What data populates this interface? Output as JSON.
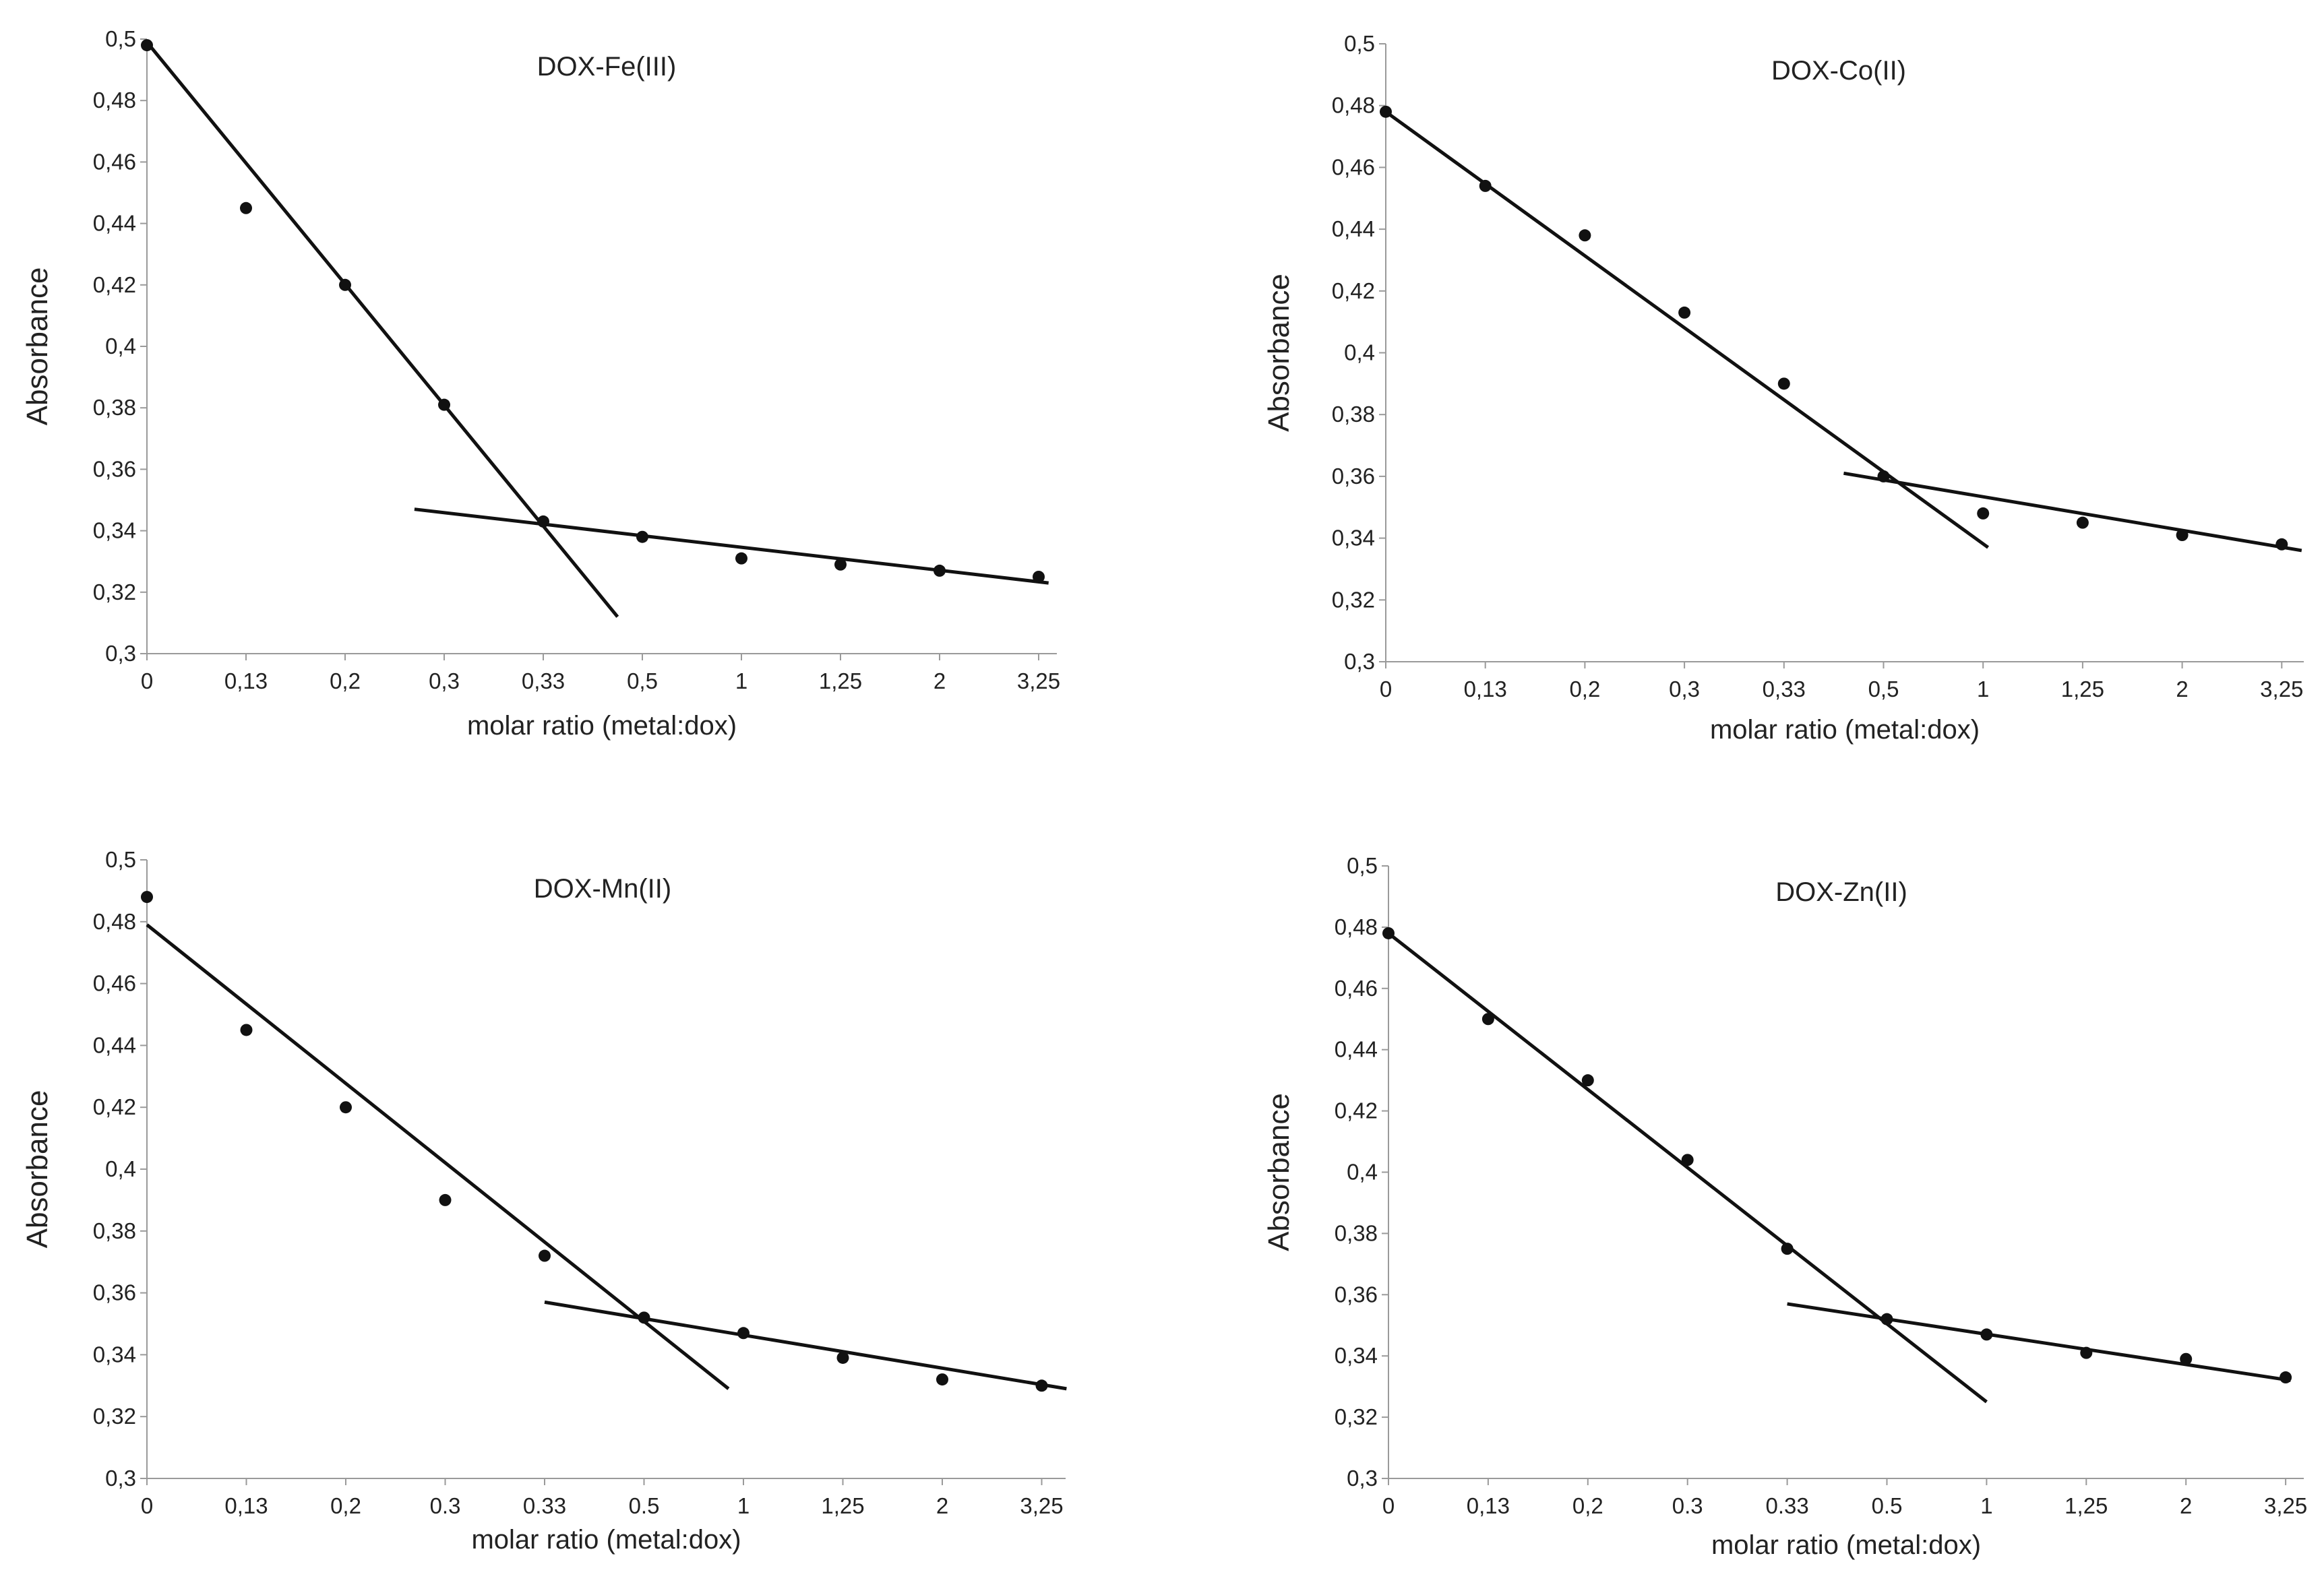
{
  "colors": {
    "marker": "#111111",
    "line": "#111111",
    "axis": "#9a9a9a",
    "text": "#222222"
  },
  "chart_data": [
    {
      "type": "scatter",
      "title": "DOX-Fe(III)",
      "xlabel": "molar ratio (metal:dox)",
      "ylabel": "Absorbance",
      "categories": [
        "0",
        "0,13",
        "0,2",
        "0,3",
        "0,33",
        "0,5",
        "1",
        "1,25",
        "2",
        "3,25"
      ],
      "yticks": [
        "0,3",
        "0,32",
        "0,34",
        "0,36",
        "0,38",
        "0,4",
        "0,42",
        "0,44",
        "0,46",
        "0,48",
        "0,5"
      ],
      "ylim": [
        0.3,
        0.5
      ],
      "values": [
        0.498,
        0.445,
        0.42,
        0.381,
        0.343,
        0.338,
        0.331,
        0.329,
        0.327,
        0.325
      ],
      "trendlines": [
        {
          "x": [
            0,
            4.75
          ],
          "y": [
            0.499,
            0.312
          ]
        },
        {
          "x": [
            2.7,
            9.1
          ],
          "y": [
            0.347,
            0.323
          ]
        }
      ]
    },
    {
      "type": "scatter",
      "title": "DOX-Co(II)",
      "xlabel": "molar ratio (metal:dox)",
      "ylabel": "Absorbance",
      "categories": [
        "0",
        "0,13",
        "0,2",
        "0,3",
        "0,33",
        "0,5",
        "1",
        "1,25",
        "2",
        "3,25"
      ],
      "yticks": [
        "0,3",
        "0,32",
        "0,34",
        "0,36",
        "0,38",
        "0,4",
        "0,42",
        "0,44",
        "0,46",
        "0,48",
        "0,5"
      ],
      "ylim": [
        0.3,
        0.5
      ],
      "values": [
        0.478,
        0.454,
        0.438,
        0.413,
        0.39,
        0.36,
        0.348,
        0.345,
        0.341,
        0.338
      ],
      "trendlines": [
        {
          "x": [
            0,
            6.05
          ],
          "y": [
            0.478,
            0.337
          ]
        },
        {
          "x": [
            4.6,
            9.2
          ],
          "y": [
            0.361,
            0.336
          ]
        }
      ]
    },
    {
      "type": "scatter",
      "title": "DOX-Mn(II)",
      "xlabel": "molar ratio (metal:dox)",
      "ylabel": "Absorbance",
      "categories": [
        "0",
        "0,13",
        "0,2",
        "0.3",
        "0.33",
        "0.5",
        "1",
        "1,25",
        "2",
        "3,25"
      ],
      "yticks": [
        "0,3",
        "0,32",
        "0,34",
        "0,36",
        "0,38",
        "0,4",
        "0,42",
        "0,44",
        "0,46",
        "0,48",
        "0,5"
      ],
      "ylim": [
        0.3,
        0.5
      ],
      "values": [
        0.488,
        0.445,
        0.42,
        0.39,
        0.372,
        0.352,
        0.347,
        0.339,
        0.332,
        0.33
      ],
      "trendlines": [
        {
          "x": [
            0,
            5.85
          ],
          "y": [
            0.479,
            0.329
          ]
        },
        {
          "x": [
            4.0,
            9.25
          ],
          "y": [
            0.357,
            0.329
          ]
        }
      ]
    },
    {
      "type": "scatter",
      "title": "DOX-Zn(II)",
      "xlabel": "molar ratio (metal:dox)",
      "ylabel": "Absorbance",
      "categories": [
        "0",
        "0,13",
        "0,2",
        "0.3",
        "0.33",
        "0.5",
        "1",
        "1,25",
        "2",
        "3,25"
      ],
      "yticks": [
        "0,3",
        "0,32",
        "0,34",
        "0,36",
        "0,38",
        "0,4",
        "0,42",
        "0,44",
        "0,46",
        "0,48",
        "0,5"
      ],
      "ylim": [
        0.3,
        0.5
      ],
      "values": [
        0.478,
        0.45,
        0.43,
        0.404,
        0.375,
        0.352,
        0.347,
        0.341,
        0.339,
        0.333
      ],
      "trendlines": [
        {
          "x": [
            0,
            6.0
          ],
          "y": [
            0.478,
            0.325
          ]
        },
        {
          "x": [
            4.0,
            9.05
          ],
          "y": [
            0.357,
            0.332
          ]
        }
      ]
    }
  ]
}
